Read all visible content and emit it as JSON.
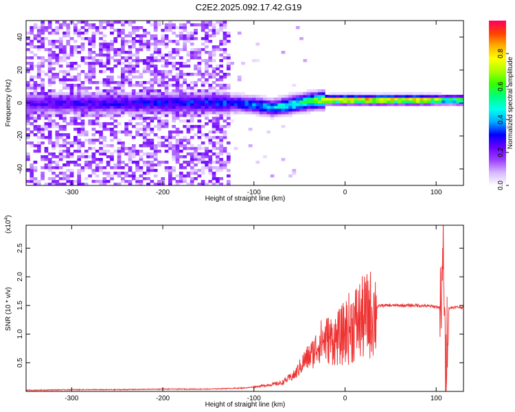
{
  "title": "C2E2.2025.092.17.42.G19",
  "chart_data": [
    {
      "type": "heatmap",
      "xlabel": "Height of straight line (km)",
      "ylabel": "Frequency (Hz)",
      "xlim": [
        -350,
        130
      ],
      "ylim": [
        -50,
        50
      ],
      "xticks": [
        -300,
        -200,
        -100,
        0,
        100
      ],
      "yticks": [
        -40,
        -20,
        0,
        20,
        40
      ],
      "colorbar": {
        "label": "Normalized spectral amplitude",
        "range": [
          0,
          1
        ],
        "ticks": [
          "0.0",
          "0.2",
          "0.4",
          "0.6",
          "0.8"
        ],
        "colormap": [
          "#ffffff",
          "#d8b8ff",
          "#9a40ff",
          "#6a00ff",
          "#0000ff",
          "#00aaff",
          "#00ffee",
          "#00ff80",
          "#33ff00",
          "#aaff00",
          "#ffff00",
          "#ffb000",
          "#ff4000",
          "#ff0060"
        ]
      },
      "features": {
        "noise_region_x": [
          -350,
          -125
        ],
        "noise_amplitude": 0.2,
        "tone_frequency_by_x": [
          [
            -350,
            0
          ],
          [
            -120,
            0
          ],
          [
            -100,
            -1
          ],
          [
            -80,
            -3
          ],
          [
            -60,
            -1
          ],
          [
            -40,
            1
          ],
          [
            -20,
            2
          ],
          [
            0,
            2
          ],
          [
            100,
            2
          ],
          [
            130,
            2
          ]
        ],
        "tone_amplitude_by_x": [
          [
            -350,
            0.25
          ],
          [
            -120,
            0.35
          ],
          [
            -80,
            0.45
          ],
          [
            -40,
            0.6
          ],
          [
            -20,
            0.8
          ],
          [
            0,
            0.85
          ],
          [
            80,
            0.85
          ],
          [
            100,
            0.75
          ],
          [
            110,
            0.55
          ],
          [
            130,
            0.7
          ]
        ]
      }
    },
    {
      "type": "line",
      "xlabel": "Height of straight line (km)",
      "ylabel": "SNR (10 * v/v)",
      "multiplier": "(x10",
      "multiplier_exp": "4",
      "xlim": [
        -350,
        130
      ],
      "ylim": [
        0,
        2.9
      ],
      "xticks": [
        -300,
        -200,
        -100,
        0,
        100
      ],
      "yticks": [
        0.5,
        1.0,
        1.5,
        2.0,
        2.5
      ],
      "series": [
        {
          "color": "#ee3333",
          "x": [
            -350,
            -300,
            -250,
            -200,
            -150,
            -110,
            -90,
            -70,
            -55,
            -45,
            -35,
            -28,
            -20,
            -12,
            -5,
            0,
            10,
            20,
            30,
            40,
            60,
            80,
            100,
            106,
            108,
            110,
            113,
            120,
            130
          ],
          "y": [
            0.02,
            0.03,
            0.03,
            0.04,
            0.04,
            0.06,
            0.1,
            0.15,
            0.3,
            0.55,
            0.7,
            0.9,
            0.95,
            0.95,
            1.0,
            1.1,
            1.25,
            1.35,
            1.45,
            1.5,
            1.5,
            1.5,
            1.48,
            1.45,
            2.7,
            0.3,
            1.45,
            1.47,
            1.47
          ]
        }
      ]
    }
  ]
}
